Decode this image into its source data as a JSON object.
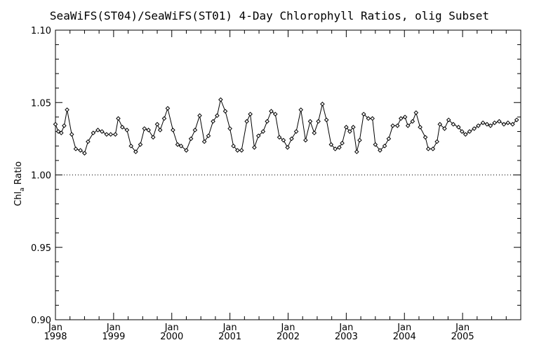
{
  "chart_data": {
    "type": "line",
    "title": "SeaWiFS(ST04)/SeaWiFS(ST01) 4-Day Chlorophyll Ratios, olig Subset",
    "ylabel_main": "Chl",
    "ylabel_sub": "a",
    "ylabel_rest": " Ratio",
    "ylim": [
      0.9,
      1.1
    ],
    "yticks": [
      "0.90",
      "0.95",
      "1.00",
      "1.05",
      "1.10"
    ],
    "yticks_values": [
      0.9,
      0.95,
      1.0,
      1.05,
      1.1
    ],
    "xlim": [
      1998.0,
      2006.0
    ],
    "xtick_month": "Jan",
    "xticks": [
      "1998",
      "1999",
      "2000",
      "2001",
      "2002",
      "2003",
      "2004",
      "2005"
    ],
    "reference_line": 1.0,
    "marker": "diamond",
    "x": [
      1998.0,
      1998.05,
      1998.1,
      1998.15,
      1998.2,
      1998.28,
      1998.35,
      1998.43,
      1998.5,
      1998.56,
      1998.65,
      1998.73,
      1998.8,
      1998.88,
      1998.95,
      1999.03,
      1999.08,
      1999.15,
      1999.23,
      1999.3,
      1999.38,
      1999.46,
      1999.53,
      1999.6,
      1999.68,
      1999.75,
      1999.8,
      1999.87,
      1999.93,
      2000.02,
      2000.1,
      2000.16,
      2000.25,
      2000.33,
      2000.4,
      2000.48,
      2000.56,
      2000.63,
      2000.71,
      2000.78,
      2000.84,
      2000.92,
      2001.0,
      2001.06,
      2001.13,
      2001.2,
      2001.29,
      2001.35,
      2001.42,
      2001.49,
      2001.57,
      2001.64,
      2001.71,
      2001.78,
      2001.85,
      2001.92,
      2001.99,
      2002.06,
      2002.14,
      2002.22,
      2002.3,
      2002.38,
      2002.45,
      2002.52,
      2002.59,
      2002.66,
      2002.74,
      2002.81,
      2002.88,
      2002.93,
      2003.0,
      2003.06,
      2003.12,
      2003.18,
      2003.23,
      2003.3,
      2003.38,
      2003.45,
      2003.5,
      2003.58,
      2003.66,
      2003.73,
      2003.8,
      2003.88,
      2003.94,
      2004.01,
      2004.06,
      2004.14,
      2004.2,
      2004.27,
      2004.36,
      2004.41,
      2004.49,
      2004.56,
      2004.61,
      2004.69,
      2004.76,
      2004.84,
      2004.93,
      2004.99,
      2005.05,
      2005.12,
      2005.2,
      2005.27,
      2005.35,
      2005.42,
      2005.48,
      2005.55,
      2005.63,
      2005.71,
      2005.78,
      2005.86,
      2005.93
    ],
    "y": [
      1.035,
      1.03,
      1.029,
      1.034,
      1.045,
      1.028,
      1.018,
      1.017,
      1.015,
      1.023,
      1.029,
      1.031,
      1.03,
      1.028,
      1.028,
      1.028,
      1.039,
      1.033,
      1.031,
      1.02,
      1.016,
      1.021,
      1.032,
      1.031,
      1.026,
      1.035,
      1.031,
      1.039,
      1.046,
      1.031,
      1.021,
      1.02,
      1.017,
      1.025,
      1.031,
      1.041,
      1.023,
      1.027,
      1.037,
      1.041,
      1.052,
      1.044,
      1.032,
      1.02,
      1.017,
      1.017,
      1.037,
      1.042,
      1.019,
      1.027,
      1.03,
      1.037,
      1.044,
      1.042,
      1.026,
      1.024,
      1.019,
      1.025,
      1.03,
      1.045,
      1.024,
      1.037,
      1.029,
      1.037,
      1.049,
      1.038,
      1.021,
      1.018,
      1.019,
      1.022,
      1.033,
      1.03,
      1.033,
      1.016,
      1.024,
      1.042,
      1.039,
      1.039,
      1.021,
      1.017,
      1.02,
      1.025,
      1.034,
      1.034,
      1.039,
      1.04,
      1.034,
      1.037,
      1.043,
      1.033,
      1.026,
      1.018,
      1.018,
      1.023,
      1.035,
      1.032,
      1.038,
      1.035,
      1.033,
      1.03,
      1.028,
      1.03,
      1.032,
      1.034,
      1.036,
      1.035,
      1.034,
      1.036,
      1.037,
      1.035,
      1.036,
      1.035,
      1.038
    ]
  }
}
